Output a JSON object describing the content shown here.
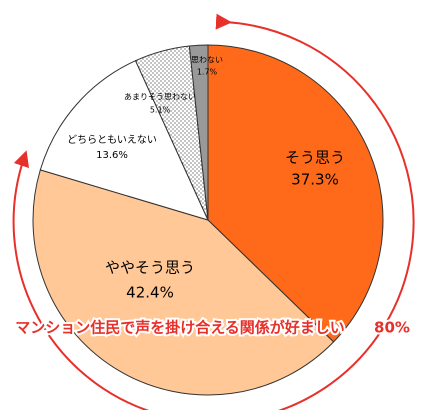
{
  "chart_data": {
    "type": "pie",
    "categories": [
      "そう思う",
      "ややそう思う",
      "どちらともいえない",
      "あまりそう思わない",
      "思わない"
    ],
    "values": [
      37.3,
      42.4,
      13.6,
      5.1,
      1.7
    ],
    "value_labels": [
      "37.3%",
      "42.4%",
      "13.6%",
      "5.1%",
      "1.7%"
    ],
    "colors": [
      "#ff6a1a",
      "#ffc896",
      "#ffffff",
      "dotted",
      "#999999"
    ],
    "annotation": "マンション住民で声を掛け合える関係が好ましい",
    "annotation_value": "80%"
  }
}
